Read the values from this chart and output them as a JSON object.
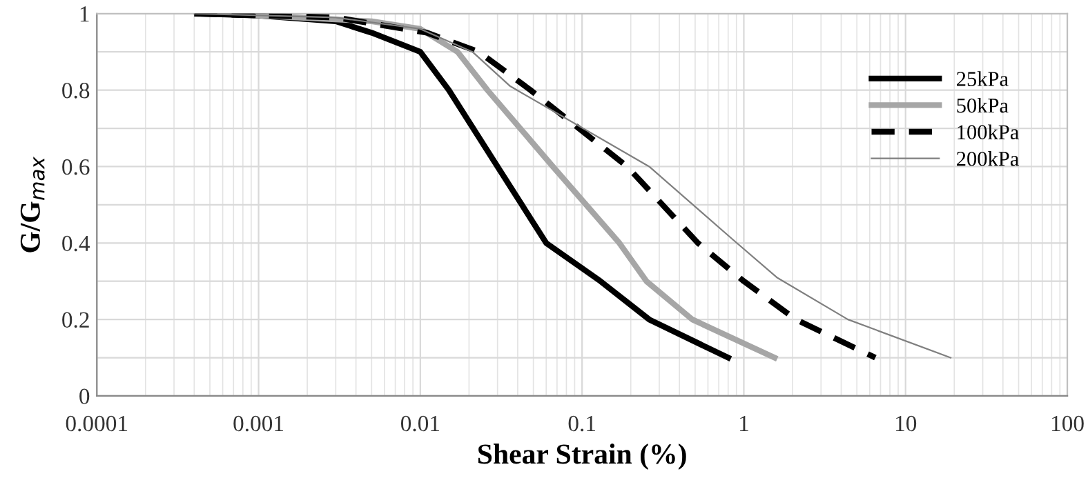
{
  "chart_data": {
    "type": "line",
    "xlabel": "Shear Strain (%)",
    "ylabel": "G/G$_{max}$",
    "log": "x",
    "xlim": [
      0.0001,
      100
    ],
    "xticks": [
      {
        "value": 0.0001,
        "label": "0.0001"
      },
      {
        "value": 0.001,
        "label": "0.001"
      },
      {
        "value": 0.01,
        "label": "0.01"
      },
      {
        "value": 0.1,
        "label": "0.1"
      },
      {
        "value": 1,
        "label": "1"
      },
      {
        "value": 10,
        "label": "10"
      },
      {
        "value": 100,
        "label": "100"
      }
    ],
    "ylim": [
      0,
      1
    ],
    "yticks": [
      0,
      {
        "value": 0.1,
        "label": null
      },
      0.2,
      {
        "value": 0.3,
        "label": null
      },
      0.4,
      {
        "value": 0.5,
        "label": null
      },
      0.6,
      {
        "value": 0.7,
        "label": null
      },
      0.8,
      {
        "value": 0.9,
        "label": null
      },
      1
    ],
    "grid": true,
    "legend": "right",
    "marker": "none",
    "series": [
      {
        "name": "25kPa",
        "color": "#000000",
        "line_style": "solid",
        "x": [
          0.00042,
          0.001,
          0.003,
          0.005,
          0.01,
          0.015,
          0.03,
          0.06,
          0.13,
          0.26,
          0.8
        ],
        "values": [
          1,
          0.995,
          0.98,
          0.95,
          0.9,
          0.8,
          0.6,
          0.4,
          0.3,
          0.2,
          0.1
        ]
      },
      {
        "name": "50kPa",
        "color": "#a6a6a6",
        "line_style": "solid",
        "x": [
          0.001,
          0.005,
          0.01,
          0.017,
          0.026,
          0.066,
          0.17,
          0.25,
          0.48,
          1.55
        ],
        "values": [
          0.995,
          0.98,
          0.96,
          0.9,
          0.8,
          0.6,
          0.4,
          0.3,
          0.2,
          0.1
        ]
      },
      {
        "name": "100kPa",
        "color": "#000000",
        "line_style": "dashed",
        "x": [
          0.0004,
          0.003,
          0.011,
          0.023,
          0.048,
          0.19,
          0.52,
          1.0,
          2.1,
          6.5
        ],
        "values": [
          1,
          0.99,
          0.95,
          0.9,
          0.8,
          0.6,
          0.4,
          0.3,
          0.2,
          0.1
        ]
      },
      {
        "name": "200kPa",
        "color": "#7f7f7f",
        "line_style": "solid",
        "x": [
          0.0004,
          0.003,
          0.01,
          0.021,
          0.036,
          0.26,
          0.85,
          1.6,
          4.4,
          19
        ],
        "values": [
          1,
          0.99,
          0.96,
          0.9,
          0.81,
          0.6,
          0.41,
          0.31,
          0.2,
          0.1
        ]
      }
    ]
  }
}
